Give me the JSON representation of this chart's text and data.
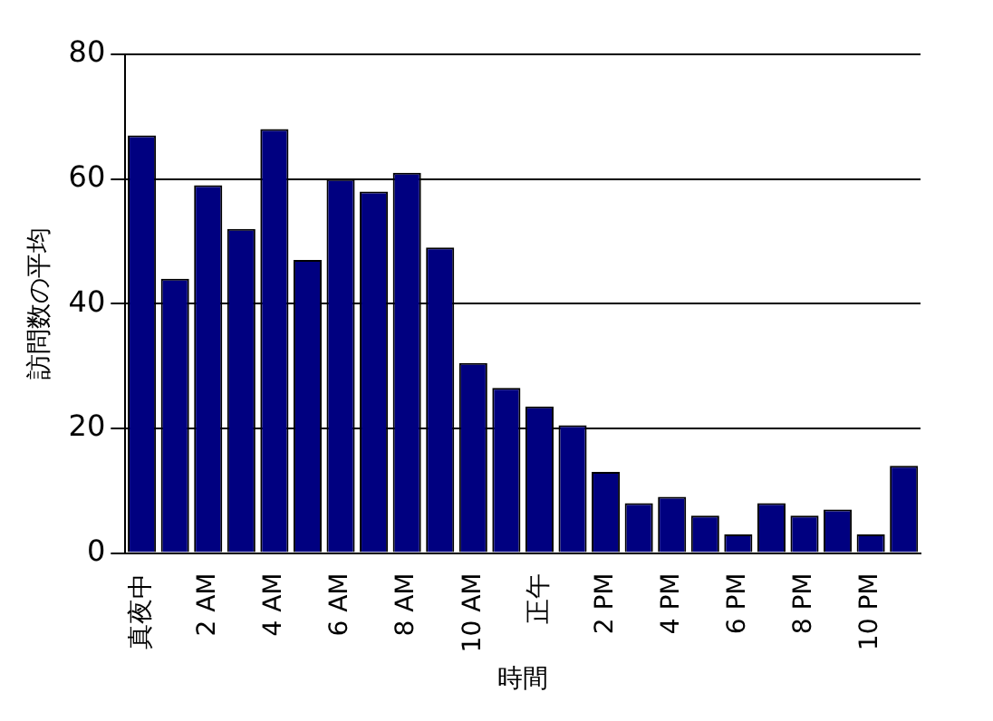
{
  "chart_data": {
    "type": "bar",
    "xlabel": "時間",
    "ylabel": "訪問数の平均",
    "categories": [
      "真夜中",
      null,
      "2 AM",
      null,
      "4 AM",
      null,
      "6 AM",
      null,
      "8 AM",
      null,
      "10 AM",
      null,
      "正午",
      null,
      "2 PM",
      null,
      "4 PM",
      null,
      "6 PM",
      null,
      "8 PM",
      null,
      "10 PM",
      null
    ],
    "values": [
      67,
      44,
      59,
      52,
      68,
      47,
      60,
      58,
      61,
      49,
      30.5,
      26.5,
      23.5,
      20.5,
      13,
      8,
      9,
      6,
      3,
      8,
      6,
      7,
      3,
      14
    ],
    "color": "#000080",
    "ylim": [
      0,
      80
    ],
    "yticks": [
      0,
      20,
      40,
      60,
      80
    ],
    "grid": "y",
    "legend": false
  }
}
